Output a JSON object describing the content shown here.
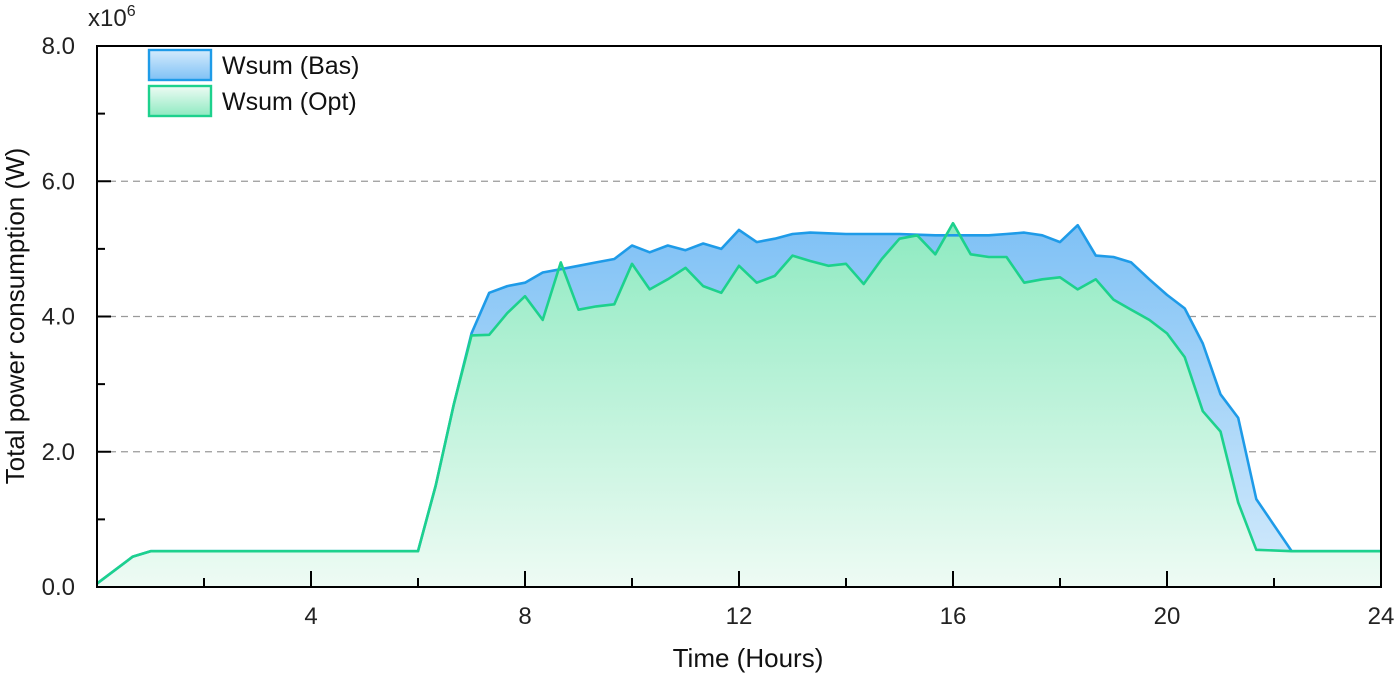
{
  "chart_data": {
    "type": "area",
    "title": "",
    "xlabel": "Time (Hours)",
    "ylabel": "Total power consumption (W)",
    "y_multiplier_label": {
      "base": "x10",
      "exp": "6"
    },
    "xlim": [
      0,
      24
    ],
    "ylim": [
      0,
      8
    ],
    "x_ticks": [
      4,
      8,
      12,
      16,
      20,
      24
    ],
    "x_tick_labels": [
      "4",
      "8",
      "12",
      "16",
      "20",
      "24"
    ],
    "y_ticks": [
      0,
      2,
      4,
      6,
      8
    ],
    "y_tick_labels": [
      "0.0",
      "2.0",
      "4.0",
      "6.0",
      "8.0"
    ],
    "grid": "horizontal dashed",
    "legend_position": "top-left",
    "series": [
      {
        "name": "Wsum (Bas)",
        "color": "#1E9BE8",
        "fill_top": "#7FC1F5",
        "fill_bottom": "#D4EBFC",
        "x": [
          0,
          0.67,
          1,
          6,
          6.33,
          6.67,
          7,
          7.33,
          7.67,
          8,
          8.33,
          8.67,
          9,
          9.33,
          9.67,
          10,
          10.33,
          10.67,
          11,
          11.33,
          11.67,
          12,
          12.33,
          12.67,
          13,
          13.33,
          13.67,
          14,
          14.33,
          14.67,
          15,
          15.33,
          15.67,
          16,
          16.33,
          16.67,
          17,
          17.33,
          17.67,
          18,
          18.33,
          18.67,
          19,
          19.33,
          19.67,
          20,
          20.33,
          20.67,
          21,
          21.33,
          21.67,
          22.33,
          24
        ],
        "values": [
          0.05,
          0.45,
          0.53,
          0.53,
          1.5,
          2.7,
          3.75,
          4.35,
          4.45,
          4.5,
          4.65,
          4.7,
          4.75,
          4.8,
          4.85,
          5.05,
          4.95,
          5.05,
          4.98,
          5.08,
          5.0,
          5.28,
          5.1,
          5.15,
          5.22,
          5.24,
          5.23,
          5.22,
          5.22,
          5.22,
          5.22,
          5.21,
          5.2,
          5.2,
          5.2,
          5.2,
          5.22,
          5.24,
          5.2,
          5.1,
          5.35,
          4.9,
          4.88,
          4.8,
          4.55,
          4.32,
          4.12,
          3.6,
          2.85,
          2.5,
          1.3,
          0.53,
          0.53
        ]
      },
      {
        "name": "Wsum (Opt)",
        "color": "#1DD18D",
        "fill_top": "#8EEAC1",
        "fill_bottom": "#EEFBF4",
        "x": [
          0,
          0.67,
          1,
          6,
          6.33,
          6.67,
          7,
          7.33,
          7.67,
          8,
          8.33,
          8.67,
          9,
          9.33,
          9.67,
          10,
          10.33,
          10.67,
          11,
          11.33,
          11.67,
          12,
          12.33,
          12.67,
          13,
          13.33,
          13.67,
          14,
          14.33,
          14.67,
          15,
          15.33,
          15.67,
          16,
          16.33,
          16.67,
          17,
          17.33,
          17.67,
          18,
          18.33,
          18.67,
          19,
          19.33,
          19.67,
          20,
          20.33,
          20.67,
          21,
          21.33,
          21.67,
          22.33,
          24
        ],
        "values": [
          0.05,
          0.45,
          0.53,
          0.53,
          1.5,
          2.7,
          3.72,
          3.73,
          4.05,
          4.3,
          3.95,
          4.8,
          4.1,
          4.15,
          4.18,
          4.78,
          4.4,
          4.55,
          4.72,
          4.45,
          4.35,
          4.75,
          4.5,
          4.6,
          4.9,
          4.82,
          4.75,
          4.78,
          4.48,
          4.85,
          5.15,
          5.2,
          4.92,
          5.38,
          4.92,
          4.88,
          4.88,
          4.5,
          4.55,
          4.58,
          4.4,
          4.55,
          4.25,
          4.1,
          3.95,
          3.75,
          3.4,
          2.6,
          2.3,
          1.25,
          0.55,
          0.53,
          0.53
        ]
      }
    ]
  }
}
